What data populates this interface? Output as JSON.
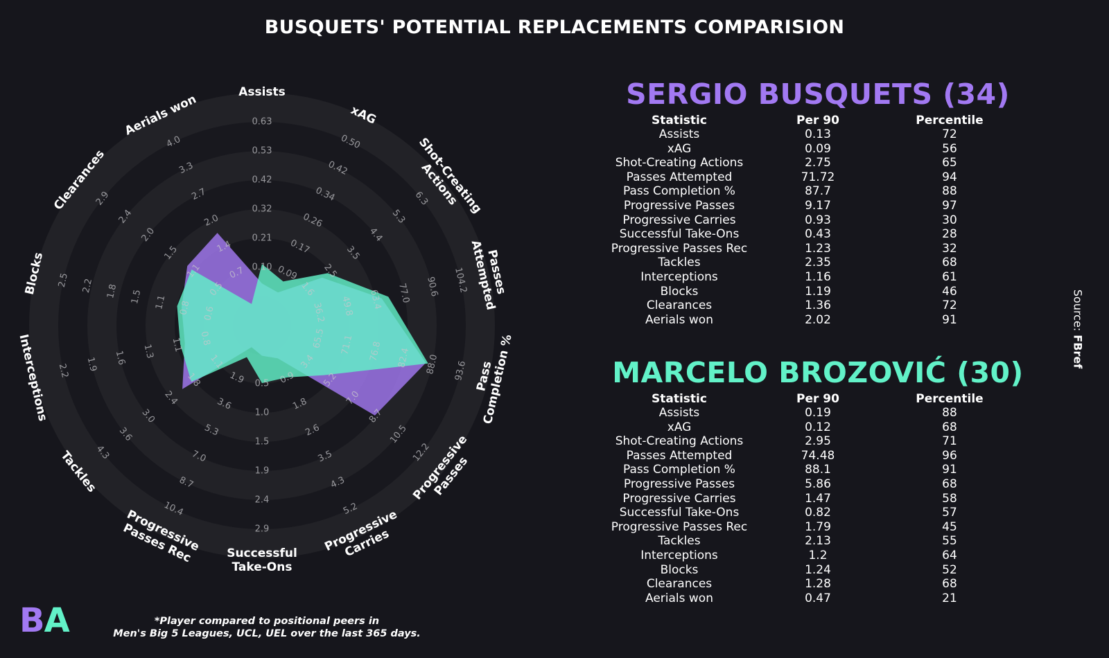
{
  "title": "BUSQUETS' POTENTIAL REPLACEMENTS COMPARISION",
  "colors": {
    "background": "#16161c",
    "player1": "#a279f2",
    "player2": "#62f2c8",
    "ring_light": "#222227",
    "ring_dark": "#18181e"
  },
  "table_headers": {
    "statistic": "Statistic",
    "per90": "Per 90",
    "percentile": "Percentile"
  },
  "players": [
    {
      "heading": "SERGIO BUSQUETS (34)",
      "rows": [
        {
          "stat": "Assists",
          "per90": "0.13",
          "pct": "72"
        },
        {
          "stat": "xAG",
          "per90": "0.09",
          "pct": "56"
        },
        {
          "stat": "Shot-Creating Actions",
          "per90": "2.75",
          "pct": "65"
        },
        {
          "stat": "Passes Attempted",
          "per90": "71.72",
          "pct": "94"
        },
        {
          "stat": "Pass Completion %",
          "per90": "87.7",
          "pct": "88"
        },
        {
          "stat": "Progressive Passes",
          "per90": "9.17",
          "pct": "97"
        },
        {
          "stat": "Progressive Carries",
          "per90": "0.93",
          "pct": "30"
        },
        {
          "stat": "Successful Take-Ons",
          "per90": "0.43",
          "pct": "28"
        },
        {
          "stat": "Progressive Passes Rec",
          "per90": "1.23",
          "pct": "32"
        },
        {
          "stat": "Tackles",
          "per90": "2.35",
          "pct": "68"
        },
        {
          "stat": "Interceptions",
          "per90": "1.16",
          "pct": "61"
        },
        {
          "stat": "Blocks",
          "per90": "1.19",
          "pct": "46"
        },
        {
          "stat": "Clearances",
          "per90": "1.36",
          "pct": "72"
        },
        {
          "stat": "Aerials won",
          "per90": "2.02",
          "pct": "91"
        }
      ]
    },
    {
      "heading": "MARCELO BROZOVIĆ (30)",
      "rows": [
        {
          "stat": "Assists",
          "per90": "0.19",
          "pct": "88"
        },
        {
          "stat": "xAG",
          "per90": "0.12",
          "pct": "68"
        },
        {
          "stat": "Shot-Creating Actions",
          "per90": "2.95",
          "pct": "71"
        },
        {
          "stat": "Passes Attempted",
          "per90": "74.48",
          "pct": "96"
        },
        {
          "stat": "Pass Completion %",
          "per90": "88.1",
          "pct": "91"
        },
        {
          "stat": "Progressive Passes",
          "per90": "5.86",
          "pct": "68"
        },
        {
          "stat": "Progressive Carries",
          "per90": "1.47",
          "pct": "58"
        },
        {
          "stat": "Successful Take-Ons",
          "per90": "0.82",
          "pct": "57"
        },
        {
          "stat": "Progressive Passes Rec",
          "per90": "1.79",
          "pct": "45"
        },
        {
          "stat": "Tackles",
          "per90": "2.13",
          "pct": "55"
        },
        {
          "stat": "Interceptions",
          "per90": "1.2",
          "pct": "64"
        },
        {
          "stat": "Blocks",
          "per90": "1.24",
          "pct": "52"
        },
        {
          "stat": "Clearances",
          "per90": "1.28",
          "pct": "68"
        },
        {
          "stat": "Aerials won",
          "per90": "0.47",
          "pct": "21"
        }
      ]
    }
  ],
  "chart_data": {
    "type": "radar",
    "title": "",
    "grid": true,
    "parameters": [
      {
        "label": [
          "Assists"
        ],
        "min": 0.0,
        "max": 0.63,
        "ticks": [
          "0.10",
          "0.21",
          "0.32",
          "0.42",
          "0.53",
          "0.63"
        ]
      },
      {
        "label": [
          "xAG"
        ],
        "min": 0.0,
        "max": 0.5,
        "ticks": [
          "0.09",
          "0.17",
          "0.26",
          "0.34",
          "0.42",
          "0.50"
        ]
      },
      {
        "label": [
          "Shot-Creating",
          "Actions"
        ],
        "min": 0.6,
        "max": 6.3,
        "ticks": [
          "1.6",
          "2.5",
          "3.5",
          "4.4",
          "5.3",
          "6.3"
        ]
      },
      {
        "label": [
          "Passes",
          "Attempted"
        ],
        "min": 22.6,
        "max": 104.2,
        "ticks": [
          "36.2",
          "49.8",
          "63.4",
          "77.0",
          "90.6",
          "104.2"
        ]
      },
      {
        "label": [
          "Pass",
          "Completion %"
        ],
        "min": 60.0,
        "max": 93.6,
        "ticks": [
          "65.5",
          "71.1",
          "76.8",
          "82.4",
          "88.0",
          "93.6"
        ]
      },
      {
        "label": [
          "Progressive",
          "Passes"
        ],
        "min": 1.8,
        "max": 12.2,
        "ticks": [
          "3.4",
          "5.2",
          "7.0",
          "8.7",
          "10.5",
          "12.2"
        ]
      },
      {
        "label": [
          "Progressive",
          "Carries"
        ],
        "min": 0.0,
        "max": 5.2,
        "ticks": [
          "0.9",
          "1.8",
          "2.6",
          "3.5",
          "4.3",
          "5.2"
        ]
      },
      {
        "label": [
          "Successful",
          "Take-Ons"
        ],
        "min": 0.0,
        "max": 2.9,
        "ticks": [
          "0.5",
          "1.0",
          "1.5",
          "1.9",
          "2.4",
          "2.9"
        ]
      },
      {
        "label": [
          "Progressive",
          "Passes Rec"
        ],
        "min": 0.0,
        "max": 10.4,
        "ticks": [
          "1.9",
          "3.6",
          "5.3",
          "7.0",
          "8.7",
          "10.4"
        ]
      },
      {
        "label": [
          "Tackles"
        ],
        "min": 0.4,
        "max": 4.3,
        "ticks": [
          "1.1",
          "1.8",
          "2.4",
          "3.0",
          "3.6",
          "4.3"
        ]
      },
      {
        "label": [
          "Interceptions"
        ],
        "min": 0.5,
        "max": 2.2,
        "ticks": [
          "0.8",
          "1.1",
          "1.3",
          "1.6",
          "1.9",
          "2.2"
        ]
      },
      {
        "label": [
          "Blocks"
        ],
        "min": 0.3,
        "max": 2.5,
        "ticks": [
          "0.6",
          "0.8",
          "1.1",
          "1.5",
          "1.8",
          "2.2",
          "2.5"
        ]
      },
      {
        "label": [
          "Clearances"
        ],
        "min": 0.0,
        "max": 2.9,
        "ticks": [
          "0.5",
          "1.1",
          "1.5",
          "2.0",
          "2.4",
          "2.9"
        ]
      },
      {
        "label": [
          "Aerials won"
        ],
        "min": 0.0,
        "max": 4.0,
        "ticks": [
          "0.7",
          "1.4",
          "2.0",
          "2.7",
          "3.3",
          "4.0"
        ]
      }
    ],
    "series": [
      {
        "name": "SERGIO BUSQUETS (34)",
        "values": [
          0.13,
          0.09,
          2.75,
          71.72,
          87.7,
          9.17,
          0.93,
          0.43,
          1.23,
          2.35,
          1.16,
          1.19,
          1.36,
          2.02
        ]
      },
      {
        "name": "MARCELO BROZOVIĆ (30)",
        "values": [
          0.19,
          0.12,
          2.95,
          74.48,
          88.1,
          5.86,
          1.47,
          0.82,
          1.79,
          2.13,
          1.2,
          1.24,
          1.28,
          0.47
        ]
      }
    ]
  },
  "source_prefix": "Source: ",
  "source_name": "FBref",
  "logo": {
    "left": "B",
    "right": "A"
  },
  "footnote": [
    "*Player compared to positional peers in",
    "Men's Big 5 Leagues, UCL, UEL over the last 365 days."
  ]
}
